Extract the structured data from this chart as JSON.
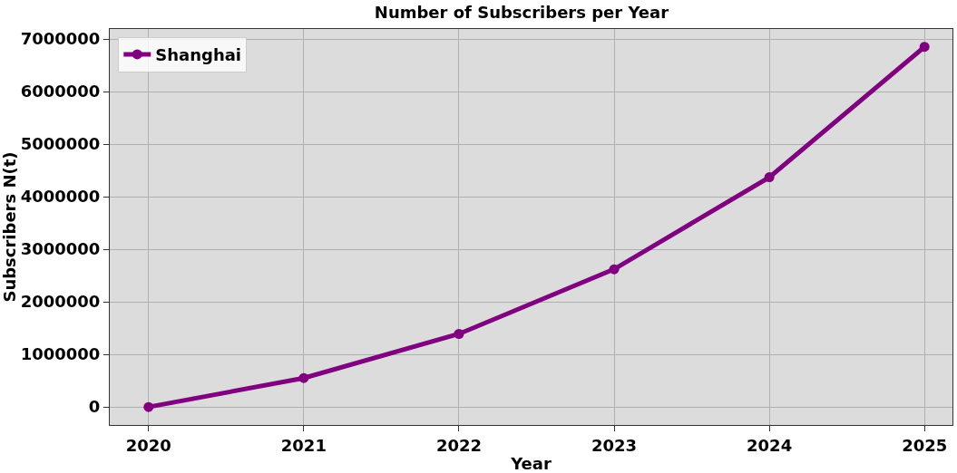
{
  "chart_data": {
    "type": "line",
    "title": "Number of Subscribers per Year",
    "xlabel": "Year",
    "ylabel": "Subscribers N(t)",
    "x": [
      2020,
      2021,
      2022,
      2023,
      2024,
      2025
    ],
    "series": [
      {
        "name": "Shanghai",
        "color": "#800080",
        "values": [
          0,
          550000,
          1390000,
          2620000,
          4370000,
          6850000
        ]
      }
    ],
    "xlim": [
      2019.75,
      2025.18
    ],
    "xticks": [
      2020,
      2021,
      2022,
      2023,
      2024,
      2025
    ],
    "ylim": [
      -342500,
      7190000
    ],
    "yticks": [
      0,
      1000000,
      2000000,
      3000000,
      4000000,
      5000000,
      6000000,
      7000000
    ],
    "grid": true,
    "legend": "top left",
    "marker": "circle",
    "line_style": "solid"
  }
}
